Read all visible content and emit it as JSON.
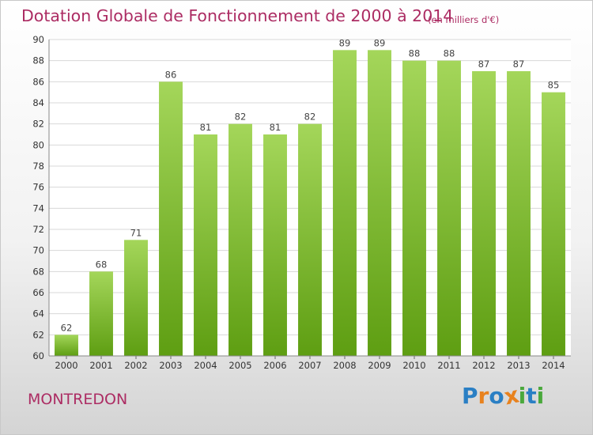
{
  "title": "Dotation Globale de Fonctionnement de 2000 à 2014",
  "unit": "(en milliers d'€)",
  "commune": "MONTREDON",
  "logo": {
    "text": "Proxiti",
    "letters": [
      "P",
      "r",
      "o",
      "x",
      "i",
      "t",
      "i"
    ],
    "colors": [
      "#2a7fc4",
      "#e8821e",
      "#2a7fc4",
      "#e8821e",
      "#4aa83c",
      "#2a7fc4",
      "#4aa83c"
    ]
  },
  "colors": {
    "bar_light": "#a4d65a",
    "bar_dark": "#5e9e12",
    "grid": "#d8d8d8",
    "accent": "#ac2c63"
  },
  "chart_data": {
    "type": "bar",
    "categories": [
      "2000",
      "2001",
      "2002",
      "2003",
      "2004",
      "2005",
      "2006",
      "2007",
      "2008",
      "2009",
      "2010",
      "2011",
      "2012",
      "2013",
      "2014"
    ],
    "values": [
      62,
      68,
      71,
      86,
      81,
      82,
      81,
      82,
      89,
      89,
      88,
      88,
      87,
      87,
      85
    ],
    "ylim": [
      60,
      90
    ],
    "yticks": [
      60,
      62,
      64,
      66,
      68,
      70,
      72,
      74,
      76,
      78,
      80,
      82,
      84,
      86,
      88,
      90
    ],
    "grid": true,
    "title": "Dotation Globale de Fonctionnement de 2000 à 2014",
    "xlabel": "",
    "ylabel": ""
  }
}
